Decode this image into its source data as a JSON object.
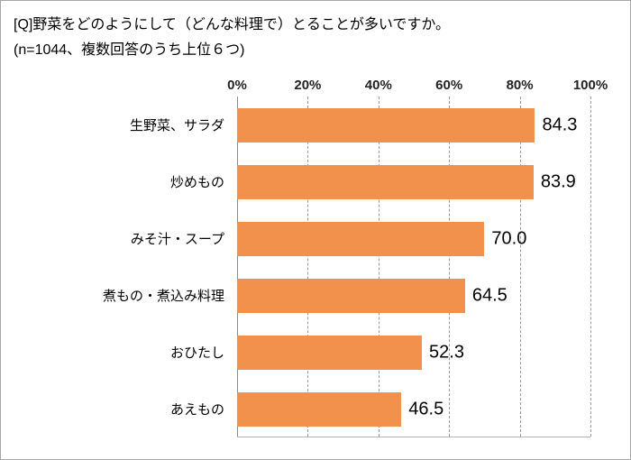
{
  "header": {
    "title": "[Q]野菜をどのようにして（どんな料理で）とることが多いですか。",
    "subtitle": "(n=1044、複数回答のうち上位６つ)"
  },
  "chart_data": {
    "type": "bar",
    "orientation": "horizontal",
    "title": "[Q]野菜をどのようにして（どんな料理で）とることが多いですか。",
    "subtitle": "(n=1044、複数回答のうち上位６つ)",
    "categories": [
      "生野菜、サラダ",
      "炒めもの",
      "みそ汁・スープ",
      "煮もの・煮込み料理",
      "おひたし",
      "あえもの"
    ],
    "values": [
      84.3,
      83.9,
      70.0,
      64.5,
      52.3,
      46.5
    ],
    "value_labels": [
      "84.3",
      "83.9",
      "70.0",
      "64.5",
      "52.3",
      "46.5"
    ],
    "x_axis": {
      "min": 0,
      "max": 100,
      "ticks": [
        0,
        20,
        40,
        60,
        80,
        100
      ],
      "tick_labels": [
        "0%",
        "20%",
        "40%",
        "60%",
        "80%",
        "100%"
      ],
      "position": "top",
      "gridlines": "dashed"
    },
    "legend": "none",
    "bar_color": "#F2914B"
  }
}
